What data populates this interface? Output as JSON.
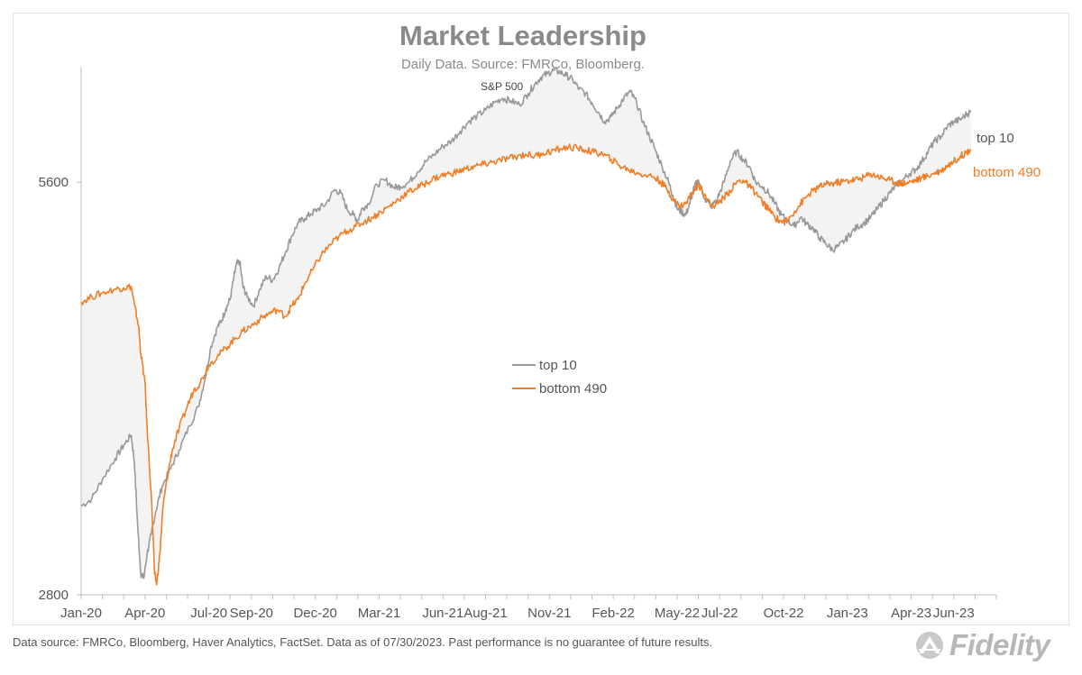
{
  "chart_data": {
    "type": "line",
    "title": "Market Leadership",
    "subtitle": "Daily Data.  Source: FMRCo, Bloomberg.",
    "annotation": "S&P 500",
    "yscale": "log",
    "ylim": [
      2800,
      6800
    ],
    "yticks": [
      {
        "value": 2800,
        "label": "2800"
      },
      {
        "value": 5600,
        "label": "5600"
      }
    ],
    "xlim": [
      0,
      43
    ],
    "xticks": [
      {
        "x": 0,
        "label": "Jan-20"
      },
      {
        "x": 3,
        "label": "Apr-20"
      },
      {
        "x": 6,
        "label": "Jul-20"
      },
      {
        "x": 8,
        "label": "Sep-20"
      },
      {
        "x": 11,
        "label": "Dec-20"
      },
      {
        "x": 14,
        "label": "Mar-21"
      },
      {
        "x": 17,
        "label": "Jun-21"
      },
      {
        "x": 19,
        "label": "Aug-21"
      },
      {
        "x": 22,
        "label": "Nov-21"
      },
      {
        "x": 25,
        "label": "Feb-22"
      },
      {
        "x": 28,
        "label": "May-22"
      },
      {
        "x": 30,
        "label": "Jul-22"
      },
      {
        "x": 33,
        "label": "Oct-22"
      },
      {
        "x": 36,
        "label": "Jan-23"
      },
      {
        "x": 39,
        "label": "Apr-23"
      },
      {
        "x": 41,
        "label": "Jun-23"
      }
    ],
    "series": [
      {
        "name": "top 10",
        "color": "#999999",
        "points": [
          [
            0,
            3250
          ],
          [
            0.5,
            3290
          ],
          [
            1,
            3400
          ],
          [
            1.6,
            3520
          ],
          [
            2,
            3600
          ],
          [
            2.35,
            3660
          ],
          [
            2.5,
            3500
          ],
          [
            2.65,
            3150
          ],
          [
            2.8,
            2900
          ],
          [
            2.95,
            2880
          ],
          [
            3.1,
            3000
          ],
          [
            3.3,
            3100
          ],
          [
            3.5,
            3220
          ],
          [
            3.8,
            3360
          ],
          [
            4.2,
            3460
          ],
          [
            4.6,
            3570
          ],
          [
            5.1,
            3720
          ],
          [
            5.5,
            3840
          ],
          [
            5.8,
            4010
          ],
          [
            6.1,
            4250
          ],
          [
            6.4,
            4390
          ],
          [
            6.6,
            4440
          ],
          [
            6.8,
            4530
          ],
          [
            7,
            4600
          ],
          [
            7.15,
            4750
          ],
          [
            7.3,
            4880
          ],
          [
            7.45,
            4900
          ],
          [
            7.6,
            4700
          ],
          [
            7.8,
            4620
          ],
          [
            8.1,
            4550
          ],
          [
            8.4,
            4680
          ],
          [
            8.7,
            4780
          ],
          [
            9,
            4750
          ],
          [
            9.3,
            4850
          ],
          [
            9.6,
            4980
          ],
          [
            9.9,
            5120
          ],
          [
            10.2,
            5230
          ],
          [
            10.5,
            5270
          ],
          [
            10.8,
            5310
          ],
          [
            11.1,
            5350
          ],
          [
            11.5,
            5400
          ],
          [
            11.9,
            5530
          ],
          [
            12.2,
            5500
          ],
          [
            12.5,
            5350
          ],
          [
            12.8,
            5300
          ],
          [
            13,
            5250
          ],
          [
            13.2,
            5360
          ],
          [
            13.5,
            5400
          ],
          [
            13.9,
            5580
          ],
          [
            14.3,
            5620
          ],
          [
            14.7,
            5550
          ],
          [
            15,
            5560
          ],
          [
            15.4,
            5600
          ],
          [
            15.8,
            5700
          ],
          [
            16.2,
            5800
          ],
          [
            16.6,
            5870
          ],
          [
            17,
            5950
          ],
          [
            17.4,
            6000
          ],
          [
            17.8,
            6100
          ],
          [
            18.2,
            6200
          ],
          [
            18.6,
            6260
          ],
          [
            19,
            6320
          ],
          [
            19.4,
            6400
          ],
          [
            19.8,
            6450
          ],
          [
            20.2,
            6420
          ],
          [
            20.6,
            6380
          ],
          [
            21,
            6500
          ],
          [
            21.3,
            6600
          ],
          [
            21.6,
            6680
          ],
          [
            21.9,
            6720
          ],
          [
            22.2,
            6760
          ],
          [
            22.5,
            6740
          ],
          [
            22.8,
            6700
          ],
          [
            23.1,
            6650
          ],
          [
            23.4,
            6550
          ],
          [
            23.7,
            6500
          ],
          [
            24,
            6400
          ],
          [
            24.3,
            6300
          ],
          [
            24.6,
            6200
          ],
          [
            24.9,
            6250
          ],
          [
            25.2,
            6350
          ],
          [
            25.5,
            6450
          ],
          [
            25.8,
            6520
          ],
          [
            26.1,
            6400
          ],
          [
            26.4,
            6200
          ],
          [
            26.7,
            6050
          ],
          [
            27,
            5900
          ],
          [
            27.3,
            5750
          ],
          [
            27.6,
            5600
          ],
          [
            27.8,
            5480
          ],
          [
            28,
            5360
          ],
          [
            28.2,
            5330
          ],
          [
            28.4,
            5300
          ],
          [
            28.6,
            5400
          ],
          [
            28.8,
            5550
          ],
          [
            29,
            5620
          ],
          [
            29.3,
            5450
          ],
          [
            29.6,
            5370
          ],
          [
            29.9,
            5450
          ],
          [
            30.2,
            5600
          ],
          [
            30.5,
            5800
          ],
          [
            30.8,
            5900
          ],
          [
            31.1,
            5820
          ],
          [
            31.4,
            5750
          ],
          [
            31.7,
            5600
          ],
          [
            32,
            5560
          ],
          [
            32.3,
            5500
          ],
          [
            32.6,
            5400
          ],
          [
            32.9,
            5300
          ],
          [
            33.2,
            5250
          ],
          [
            33.5,
            5200
          ],
          [
            33.8,
            5280
          ],
          [
            34.1,
            5220
          ],
          [
            34.4,
            5180
          ],
          [
            34.7,
            5100
          ],
          [
            35,
            5050
          ],
          [
            35.3,
            5000
          ],
          [
            35.6,
            5030
          ],
          [
            35.9,
            5080
          ],
          [
            36.2,
            5150
          ],
          [
            36.5,
            5200
          ],
          [
            36.8,
            5230
          ],
          [
            37.1,
            5280
          ],
          [
            37.4,
            5350
          ],
          [
            37.7,
            5430
          ],
          [
            38,
            5500
          ],
          [
            38.3,
            5570
          ],
          [
            38.6,
            5620
          ],
          [
            38.9,
            5680
          ],
          [
            39.2,
            5720
          ],
          [
            39.5,
            5800
          ],
          [
            39.8,
            5900
          ],
          [
            40.1,
            6000
          ],
          [
            40.4,
            6050
          ],
          [
            40.7,
            6150
          ],
          [
            41,
            6200
          ],
          [
            41.3,
            6220
          ],
          [
            41.6,
            6280
          ],
          [
            41.8,
            6300
          ]
        ]
      },
      {
        "name": "bottom 490",
        "color": "#f07e26",
        "points": [
          [
            0,
            4580
          ],
          [
            0.5,
            4620
          ],
          [
            1,
            4650
          ],
          [
            1.6,
            4680
          ],
          [
            2,
            4690
          ],
          [
            2.35,
            4700
          ],
          [
            2.5,
            4560
          ],
          [
            2.7,
            4400
          ],
          [
            2.8,
            4200
          ],
          [
            3,
            4000
          ],
          [
            3.1,
            3700
          ],
          [
            3.3,
            3300
          ],
          [
            3.45,
            2900
          ],
          [
            3.55,
            2850
          ],
          [
            3.7,
            3000
          ],
          [
            3.85,
            3250
          ],
          [
            4.1,
            3450
          ],
          [
            4.3,
            3580
          ],
          [
            4.6,
            3700
          ],
          [
            5,
            3850
          ],
          [
            5.3,
            3950
          ],
          [
            5.6,
            4000
          ],
          [
            6,
            4120
          ],
          [
            6.4,
            4180
          ],
          [
            6.8,
            4240
          ],
          [
            7.2,
            4300
          ],
          [
            7.6,
            4360
          ],
          [
            8,
            4400
          ],
          [
            8.4,
            4450
          ],
          [
            8.8,
            4490
          ],
          [
            9.2,
            4520
          ],
          [
            9.6,
            4470
          ],
          [
            9.9,
            4550
          ],
          [
            10.2,
            4600
          ],
          [
            10.5,
            4720
          ],
          [
            10.9,
            4840
          ],
          [
            11.3,
            4960
          ],
          [
            11.7,
            5040
          ],
          [
            12.1,
            5110
          ],
          [
            12.5,
            5160
          ],
          [
            12.9,
            5200
          ],
          [
            13.3,
            5240
          ],
          [
            13.7,
            5280
          ],
          [
            14.1,
            5330
          ],
          [
            14.5,
            5380
          ],
          [
            14.9,
            5440
          ],
          [
            15.3,
            5500
          ],
          [
            15.7,
            5540
          ],
          [
            16.1,
            5580
          ],
          [
            16.5,
            5630
          ],
          [
            16.9,
            5660
          ],
          [
            17.3,
            5680
          ],
          [
            17.7,
            5700
          ],
          [
            18.1,
            5730
          ],
          [
            18.5,
            5750
          ],
          [
            18.9,
            5770
          ],
          [
            19.3,
            5790
          ],
          [
            19.7,
            5810
          ],
          [
            20.1,
            5830
          ],
          [
            20.5,
            5850
          ],
          [
            20.9,
            5870
          ],
          [
            21.3,
            5850
          ],
          [
            21.7,
            5880
          ],
          [
            22.1,
            5900
          ],
          [
            22.5,
            5920
          ],
          [
            22.9,
            5940
          ],
          [
            23.3,
            5930
          ],
          [
            23.7,
            5910
          ],
          [
            24.1,
            5890
          ],
          [
            24.5,
            5870
          ],
          [
            24.9,
            5820
          ],
          [
            25.3,
            5760
          ],
          [
            25.7,
            5720
          ],
          [
            26.1,
            5690
          ],
          [
            26.5,
            5670
          ],
          [
            26.9,
            5650
          ],
          [
            27.2,
            5610
          ],
          [
            27.5,
            5540
          ],
          [
            27.8,
            5450
          ],
          [
            28.1,
            5380
          ],
          [
            28.4,
            5400
          ],
          [
            28.7,
            5500
          ],
          [
            29,
            5580
          ],
          [
            29.3,
            5490
          ],
          [
            29.6,
            5380
          ],
          [
            29.9,
            5400
          ],
          [
            30.2,
            5460
          ],
          [
            30.5,
            5520
          ],
          [
            30.8,
            5600
          ],
          [
            31.1,
            5620
          ],
          [
            31.4,
            5560
          ],
          [
            31.7,
            5500
          ],
          [
            32,
            5420
          ],
          [
            32.3,
            5350
          ],
          [
            32.6,
            5280
          ],
          [
            32.9,
            5240
          ],
          [
            33.2,
            5250
          ],
          [
            33.5,
            5330
          ],
          [
            33.8,
            5400
          ],
          [
            34.1,
            5470
          ],
          [
            34.4,
            5520
          ],
          [
            34.7,
            5560
          ],
          [
            35,
            5580
          ],
          [
            35.3,
            5590
          ],
          [
            35.6,
            5600
          ],
          [
            35.9,
            5610
          ],
          [
            36.2,
            5620
          ],
          [
            36.5,
            5630
          ],
          [
            36.8,
            5650
          ],
          [
            37.1,
            5680
          ],
          [
            37.4,
            5660
          ],
          [
            37.7,
            5640
          ],
          [
            38,
            5620
          ],
          [
            38.3,
            5600
          ],
          [
            38.6,
            5590
          ],
          [
            38.9,
            5600
          ],
          [
            39.2,
            5620
          ],
          [
            39.5,
            5640
          ],
          [
            39.8,
            5660
          ],
          [
            40.1,
            5690
          ],
          [
            40.4,
            5710
          ],
          [
            40.7,
            5760
          ],
          [
            41,
            5800
          ],
          [
            41.3,
            5850
          ],
          [
            41.6,
            5890
          ],
          [
            41.8,
            5920
          ]
        ]
      }
    ],
    "legend": [
      {
        "label": "top 10",
        "color": "#999999"
      },
      {
        "label": "bottom 490",
        "color": "#f07e26"
      }
    ],
    "end_labels": [
      {
        "label": "top 10",
        "color": "#555555"
      },
      {
        "label": "bottom 490",
        "color": "#f07e26"
      }
    ]
  },
  "footer": "Data source: FMRCo, Bloomberg, Haver Analytics, FactSet. Data as of 07/30/2023. Past performance is no guarantee of future results.",
  "logo": {
    "text": "Fidelity",
    "icon": "fidelity-pyramid-icon"
  }
}
